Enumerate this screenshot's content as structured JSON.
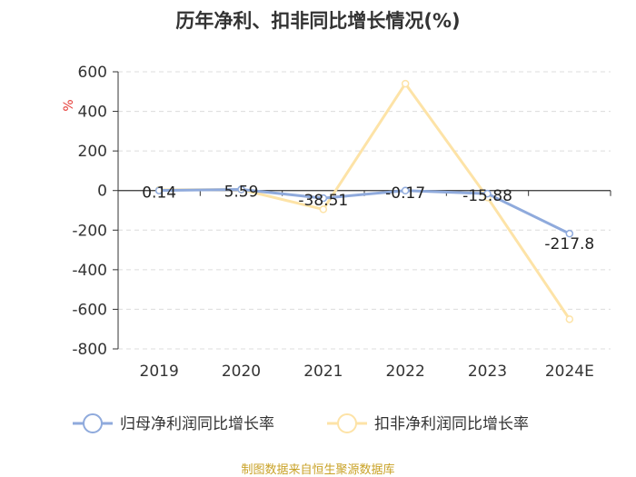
{
  "chart_data": {
    "type": "line",
    "title": "历年净利、扣非同比增长情况(%)",
    "ylabel": "%",
    "categories": [
      "2019",
      "2020",
      "2021",
      "2022",
      "2023",
      "2024E"
    ],
    "ylim": [
      -800,
      600
    ],
    "yticks": [
      600,
      400,
      200,
      0,
      -200,
      -400,
      -600,
      -800
    ],
    "grid": true,
    "legend_position": "bottom",
    "series": [
      {
        "name": "归母净利润同比增长率",
        "color": "#8faadc",
        "values": [
          0.14,
          5.59,
          -38.51,
          -0.17,
          -15.88,
          -217.8
        ],
        "labels": [
          "0.14",
          "5.59",
          "-38.51",
          "-0.17",
          "-15.88",
          "-217.8"
        ]
      },
      {
        "name": "扣非净利润同比增长率",
        "color": "#fde3a7",
        "values": [
          3,
          5,
          -95,
          540,
          -35,
          -650
        ]
      }
    ],
    "source": "制图数据来自恒生聚源数据库"
  }
}
